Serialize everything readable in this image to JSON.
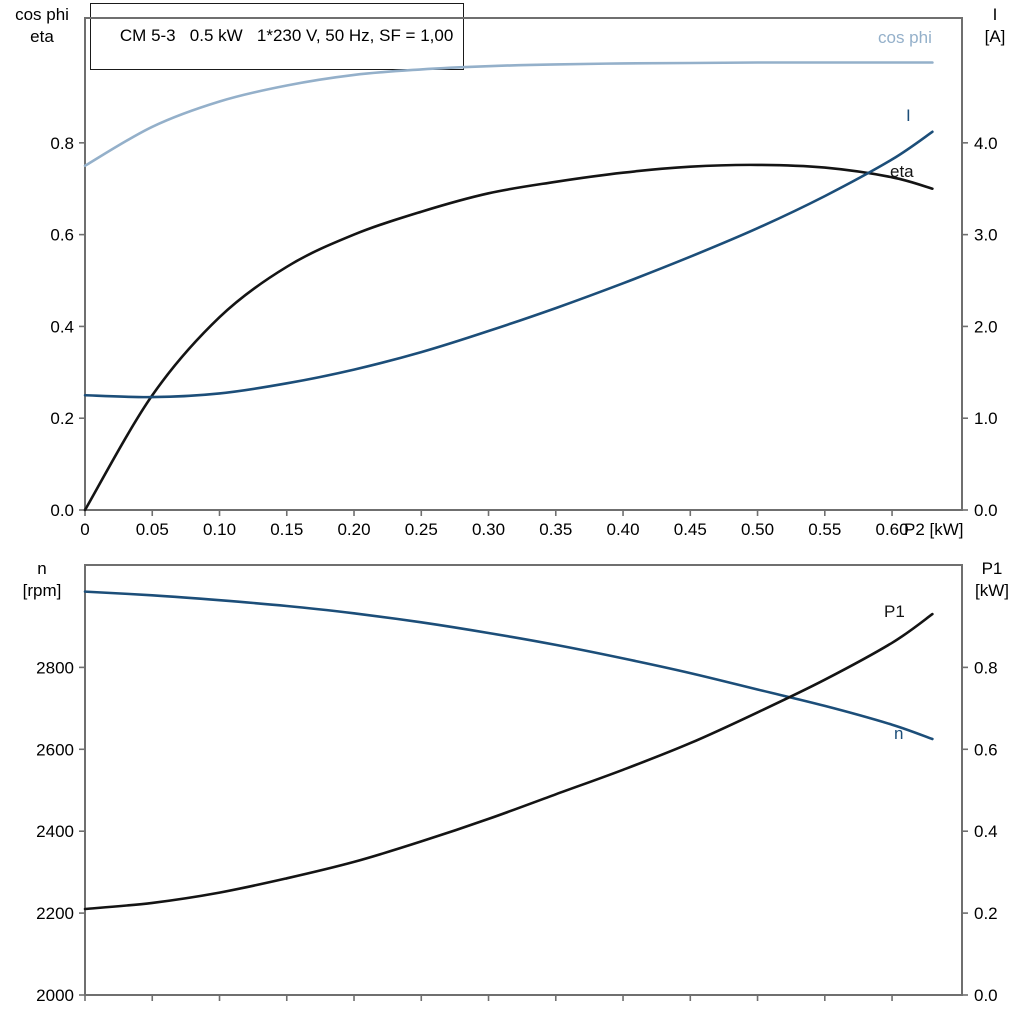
{
  "title": "CM 5-3   0.5 kW   1*230 V, 50 Hz, SF = 1,00",
  "colors": {
    "dark_blue": "#1c4e79",
    "light_blue": "#94b0ca",
    "curve_black": "#141414",
    "axis_gray": "#6f6f6f"
  },
  "chart_data": [
    {
      "type": "line",
      "title": "Motor electrical data vs shaft power",
      "xlabel": "P2 [kW]",
      "xlim": [
        0,
        0.652
      ],
      "x_ticks": [
        0,
        0.05,
        0.1,
        0.15,
        0.2,
        0.25,
        0.3,
        0.35,
        0.4,
        0.45,
        0.5,
        0.55,
        0.6
      ],
      "x_tick_labels": [
        "0",
        "0.05",
        "0.10",
        "0.15",
        "0.20",
        "0.25",
        "0.30",
        "0.35",
        "0.40",
        "0.45",
        "0.50",
        "0.55",
        "0.60"
      ],
      "axis_titles": {
        "left": [
          "cos phi",
          "eta"
        ],
        "right": [
          "I",
          "[A]"
        ]
      },
      "ylim_left": [
        0,
        1.072
      ],
      "left_ticks": [
        0.0,
        0.2,
        0.4,
        0.6,
        0.8
      ],
      "left_tick_labels": [
        "0.0",
        "0.2",
        "0.4",
        "0.6",
        "0.8"
      ],
      "ylim_right": [
        0,
        5.36
      ],
      "right_ticks": [
        0.0,
        1.0,
        2.0,
        3.0,
        4.0
      ],
      "right_tick_labels": [
        "0.0",
        "1.0",
        "2.0",
        "3.0",
        "4.0"
      ],
      "grid": false,
      "x": [
        0,
        0.05,
        0.1,
        0.15,
        0.2,
        0.25,
        0.3,
        0.35,
        0.4,
        0.45,
        0.5,
        0.55,
        0.6,
        0.63
      ],
      "series": [
        {
          "name": "cos phi",
          "axis": "left",
          "color": "light_blue",
          "values": [
            0.75,
            0.835,
            0.89,
            0.925,
            0.948,
            0.96,
            0.967,
            0.971,
            0.973,
            0.974,
            0.975,
            0.975,
            0.975,
            0.975
          ]
        },
        {
          "name": "eta",
          "axis": "left",
          "color": "curve_black",
          "values": [
            0.0,
            0.25,
            0.42,
            0.53,
            0.6,
            0.65,
            0.69,
            0.715,
            0.735,
            0.748,
            0.752,
            0.746,
            0.725,
            0.7
          ]
        },
        {
          "name": "I",
          "axis": "right",
          "color": "dark_blue",
          "values": [
            1.25,
            1.23,
            1.27,
            1.38,
            1.53,
            1.72,
            1.95,
            2.2,
            2.47,
            2.76,
            3.07,
            3.42,
            3.82,
            4.12
          ]
        }
      ]
    },
    {
      "type": "line",
      "title": "Speed and input power vs shaft power",
      "xlabel": "",
      "xlim": [
        0,
        0.652
      ],
      "x_ticks": [
        0,
        0.05,
        0.1,
        0.15,
        0.2,
        0.25,
        0.3,
        0.35,
        0.4,
        0.45,
        0.5,
        0.55,
        0.6
      ],
      "x_tick_labels": [],
      "axis_titles": {
        "left": [
          "n",
          "[rpm]"
        ],
        "right": [
          "P1",
          "[kW]"
        ]
      },
      "ylim_left": [
        2000,
        3050
      ],
      "left_ticks": [
        2000,
        2200,
        2400,
        2600,
        2800
      ],
      "left_tick_labels": [
        "2000",
        "2200",
        "2400",
        "2600",
        "2800"
      ],
      "ylim_right": [
        0,
        1.05
      ],
      "right_ticks": [
        0.0,
        0.2,
        0.4,
        0.6,
        0.8
      ],
      "right_tick_labels": [
        "0.0",
        "0.2",
        "0.4",
        "0.6",
        "0.8"
      ],
      "grid": false,
      "x": [
        0,
        0.05,
        0.1,
        0.15,
        0.2,
        0.25,
        0.3,
        0.35,
        0.4,
        0.45,
        0.5,
        0.55,
        0.6,
        0.63
      ],
      "series": [
        {
          "name": "n",
          "axis": "left",
          "color": "dark_blue",
          "values": [
            2985,
            2976,
            2964,
            2950,
            2932,
            2910,
            2884,
            2855,
            2822,
            2786,
            2746,
            2706,
            2660,
            2625
          ]
        },
        {
          "name": "P1",
          "axis": "right",
          "color": "curve_black",
          "values": [
            0.21,
            0.225,
            0.25,
            0.285,
            0.325,
            0.375,
            0.43,
            0.49,
            0.55,
            0.615,
            0.69,
            0.77,
            0.86,
            0.93
          ]
        }
      ]
    }
  ]
}
